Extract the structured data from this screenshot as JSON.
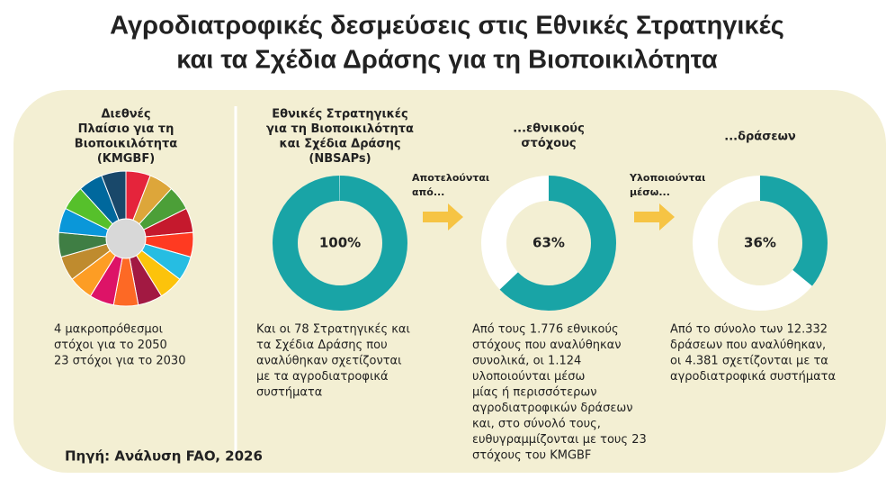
{
  "title": [
    "Αγροδιατροφικές δεσμεύσεις στις Εθνικές Στρατηγικές",
    "και τα Σχέδια Δράσης για τη Βιοποικιλότητα"
  ],
  "donut_color": "#19a4a6",
  "panels": [
    {
      "header": [
        "Διεθνές",
        "Πλαίσιο για τη",
        "Βιοποικιλότητα",
        "(KMGBF)"
      ],
      "text": [
        "4 μακροπρόθεσμοι",
        "στόχοι για το 2050",
        "23 στόχοι για το 2030"
      ]
    },
    {
      "header": [
        "Εθνικές Στρατηγικές",
        "για τη Βιοποικιλότητα",
        "και Σχέδια Δράσης",
        "(NBSAPs)"
      ],
      "donut": {
        "value": 100,
        "label": "100%"
      },
      "text": [
        "Και οι 78 Στρατηγικές και",
        "τα Σχέδια Δράσης που",
        "αναλύθηκαν σχετίζονται",
        "με τα αγροδιατροφικά",
        "συστήματα"
      ]
    },
    {
      "header": [
        "...εθνικούς",
        "στόχους"
      ],
      "donut": {
        "value": 63,
        "label": "63%"
      },
      "text": [
        "Από τους 1.776 εθνικούς",
        "στόχους που αναλύθηκαν",
        "συνολικά, οι 1.124",
        "υλοποιούνται μέσω",
        "μίας ή περισσότερων",
        "αγροδιατροφικών δράσεων",
        "και, στο σύνολό τους,",
        "ευθυγραμμίζονται με τους 23",
        "στόχους του KMGBF"
      ]
    },
    {
      "header": [
        "...δράσεων"
      ],
      "donut": {
        "value": 36,
        "label": "36%"
      },
      "text": [
        "Από το σύνολο των 12.332",
        "δράσεων που αναλύθηκαν,",
        "οι 4.381 σχετίζονται με τα",
        "αγροδιατροφικά συστήματα"
      ]
    }
  ],
  "arrows": [
    [
      "Αποτελούνται",
      "από..."
    ],
    [
      "Υλοποιούνται",
      "μέσω..."
    ]
  ],
  "source": "Πηγή: Ανάλυση FAO, 2026"
}
